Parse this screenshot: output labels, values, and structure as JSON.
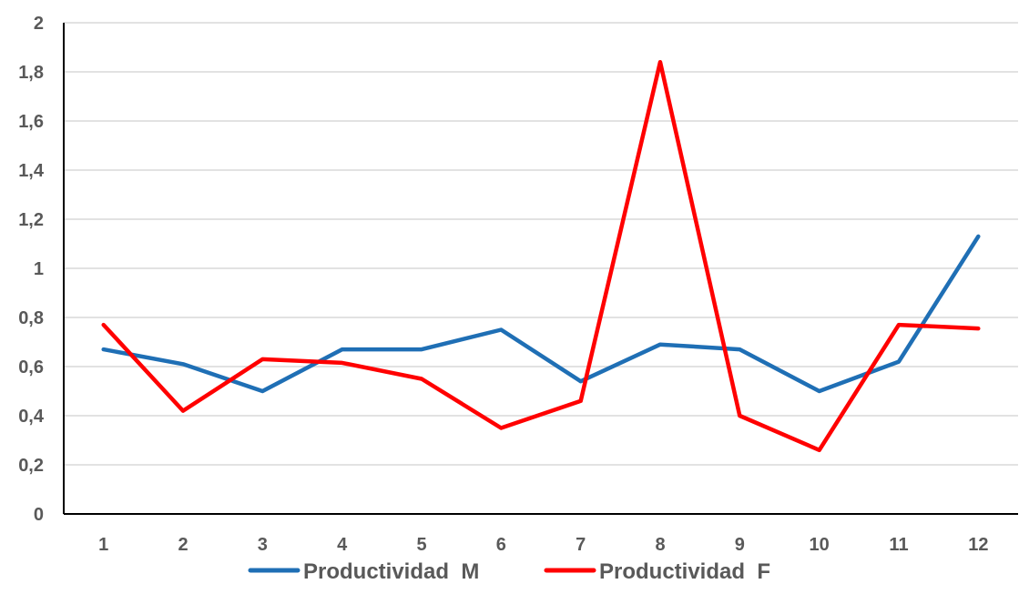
{
  "chart_data": {
    "type": "line",
    "title": "",
    "xlabel": "",
    "ylabel": "",
    "categories": [
      "1",
      "2",
      "3",
      "4",
      "5",
      "6",
      "7",
      "8",
      "9",
      "10",
      "11",
      "12"
    ],
    "ylim": [
      0,
      2
    ],
    "yticks": [
      "0",
      "0,2",
      "0,4",
      "0,6",
      "0,8",
      "1",
      "1,2",
      "1,4",
      "1,6",
      "1,8",
      "2"
    ],
    "grid": true,
    "legend_position": "bottom",
    "series": [
      {
        "name": "Productividad  M",
        "color": "#1f6fb5",
        "values": [
          0.67,
          0.61,
          0.5,
          0.67,
          0.67,
          0.75,
          0.54,
          0.69,
          0.67,
          0.5,
          0.62,
          1.13
        ]
      },
      {
        "name": "Productividad  F",
        "color": "#ff0000",
        "values": [
          0.77,
          0.42,
          0.63,
          0.615,
          0.55,
          0.35,
          0.46,
          1.84,
          0.4,
          0.26,
          0.77,
          0.755
        ]
      }
    ]
  }
}
